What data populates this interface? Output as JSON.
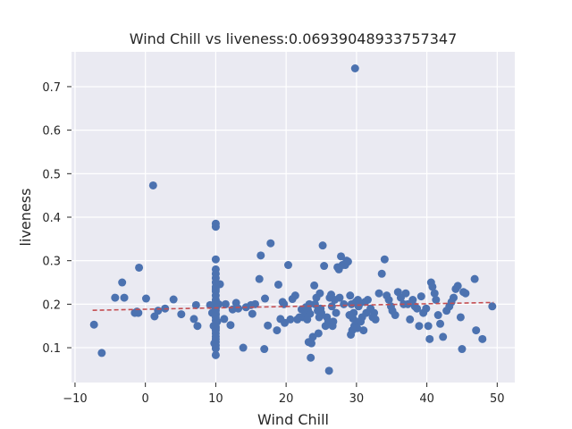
{
  "chart_data": {
    "type": "scatter",
    "title": "Wind Chill vs liveness:0.06939048933757347",
    "xlabel": "Wind Chill",
    "ylabel": "liveness",
    "xlim": [
      -10.5,
      52.5
    ],
    "ylim": [
      0.02,
      0.78
    ],
    "xticks": [
      -10,
      0,
      10,
      20,
      30,
      40,
      50
    ],
    "xtick_labels": [
      "−10",
      "0",
      "10",
      "20",
      "30",
      "40",
      "50"
    ],
    "yticks": [
      0.1,
      0.2,
      0.3,
      0.4,
      0.5,
      0.6,
      0.7
    ],
    "ytick_labels": [
      "0.1",
      "0.2",
      "0.3",
      "0.4",
      "0.5",
      "0.6",
      "0.7"
    ],
    "grid": true,
    "colors": {
      "points": "#4c72b0",
      "trend": "#c44e52",
      "background": "#eaeaf2"
    },
    "trendline": {
      "x": [
        -7.5,
        49.5
      ],
      "y": [
        0.186,
        0.204
      ],
      "style": "dashed"
    },
    "series": [
      {
        "x": [
          -7.3,
          -6.2,
          -4.3,
          -3.3,
          -3.0,
          -1.5,
          -1.2,
          -1.0,
          -0.9,
          0.1,
          1.1,
          1.3,
          1.8,
          2.8,
          4.0,
          5.1,
          6.9,
          7.2,
          7.4,
          9.2,
          9.5,
          9.7,
          9.8,
          10.0,
          10.0,
          10.0,
          10.0,
          10.0,
          10.0,
          10.0,
          10.0,
          10.0,
          10.0,
          10.0,
          10.0,
          10.0,
          10.0,
          10.0,
          10.0,
          10.0,
          10.0,
          10.0,
          10.0,
          10.0,
          10.0,
          10.0,
          10.0,
          10.0,
          10.0,
          10.0,
          10.0,
          10.0,
          10.0,
          10.0,
          10.0,
          10.2,
          10.4,
          10.6,
          11.2,
          11.4,
          12.1,
          12.4,
          12.9,
          13.2,
          13.9,
          14.3,
          15.0,
          15.2,
          15.6,
          16.2,
          16.4,
          16.9,
          17.0,
          17.4,
          17.8,
          18.7,
          18.9,
          19.2,
          19.5,
          19.7,
          19.8,
          20.3,
          20.6,
          20.9,
          21.3,
          21.6,
          21.9,
          22.2,
          22.4,
          22.7,
          22.8,
          23.0,
          23.1,
          23.2,
          23.3,
          23.4,
          23.5,
          23.6,
          23.8,
          24.0,
          24.1,
          24.3,
          24.5,
          24.6,
          24.7,
          24.8,
          24.9,
          25.0,
          25.2,
          25.4,
          25.6,
          25.8,
          26.0,
          26.1,
          26.2,
          26.4,
          26.5,
          26.6,
          26.7,
          26.9,
          27.1,
          27.3,
          27.5,
          27.6,
          27.8,
          28.0,
          28.2,
          28.4,
          28.6,
          28.8,
          29.0,
          29.1,
          29.2,
          29.3,
          29.4,
          29.5,
          29.6,
          29.7,
          29.8,
          29.9,
          30.0,
          30.1,
          30.2,
          30.3,
          30.4,
          30.6,
          30.8,
          31.0,
          31.2,
          31.4,
          31.6,
          32.0,
          32.3,
          32.5,
          32.7,
          33.2,
          33.6,
          34.0,
          34.3,
          34.6,
          34.9,
          35.1,
          35.5,
          35.9,
          36.3,
          36.7,
          37.0,
          37.3,
          37.6,
          38.0,
          38.3,
          38.6,
          38.9,
          39.2,
          39.5,
          39.9,
          40.2,
          40.4,
          40.6,
          40.8,
          41.1,
          41.3,
          41.6,
          41.9,
          42.3,
          42.8,
          43.2,
          43.5,
          43.8,
          44.1,
          44.4,
          44.8,
          45.0,
          45.2,
          45.5,
          46.8,
          47.0,
          47.9,
          49.3
        ],
        "y": [
          0.153,
          0.088,
          0.215,
          0.25,
          0.215,
          0.18,
          0.183,
          0.18,
          0.284,
          0.213,
          0.473,
          0.172,
          0.185,
          0.19,
          0.211,
          0.177,
          0.166,
          0.198,
          0.15,
          0.198,
          0.18,
          0.15,
          0.11,
          0.385,
          0.378,
          0.303,
          0.28,
          0.27,
          0.26,
          0.25,
          0.24,
          0.23,
          0.22,
          0.21,
          0.2,
          0.192,
          0.185,
          0.178,
          0.17,
          0.163,
          0.155,
          0.148,
          0.14,
          0.133,
          0.126,
          0.12,
          0.113,
          0.105,
          0.098,
          0.083,
          0.205,
          0.175,
          0.145,
          0.235,
          0.19,
          0.16,
          0.2,
          0.246,
          0.166,
          0.2,
          0.152,
          0.188,
          0.203,
          0.19,
          0.1,
          0.193,
          0.198,
          0.178,
          0.2,
          0.258,
          0.312,
          0.097,
          0.213,
          0.151,
          0.34,
          0.14,
          0.245,
          0.166,
          0.205,
          0.2,
          0.157,
          0.29,
          0.165,
          0.212,
          0.22,
          0.165,
          0.17,
          0.188,
          0.17,
          0.18,
          0.193,
          0.165,
          0.187,
          0.113,
          0.2,
          0.178,
          0.077,
          0.11,
          0.125,
          0.243,
          0.2,
          0.215,
          0.185,
          0.133,
          0.17,
          0.225,
          0.19,
          0.18,
          0.335,
          0.288,
          0.15,
          0.17,
          0.16,
          0.047,
          0.215,
          0.222,
          0.195,
          0.15,
          0.16,
          0.21,
          0.18,
          0.285,
          0.28,
          0.215,
          0.31,
          0.29,
          0.2,
          0.29,
          0.3,
          0.298,
          0.175,
          0.22,
          0.13,
          0.2,
          0.14,
          0.167,
          0.18,
          0.15,
          0.742,
          0.205,
          0.16,
          0.145,
          0.21,
          0.195,
          0.2,
          0.16,
          0.17,
          0.14,
          0.205,
          0.18,
          0.21,
          0.19,
          0.17,
          0.18,
          0.165,
          0.225,
          0.27,
          0.303,
          0.22,
          0.21,
          0.195,
          0.185,
          0.175,
          0.228,
          0.215,
          0.2,
          0.225,
          0.2,
          0.165,
          0.21,
          0.195,
          0.19,
          0.15,
          0.218,
          0.18,
          0.19,
          0.15,
          0.12,
          0.25,
          0.24,
          0.225,
          0.21,
          0.175,
          0.155,
          0.125,
          0.185,
          0.195,
          0.205,
          0.215,
          0.235,
          0.242,
          0.17,
          0.097,
          0.228,
          0.225,
          0.258,
          0.14,
          0.12,
          0.195
        ]
      }
    ]
  }
}
